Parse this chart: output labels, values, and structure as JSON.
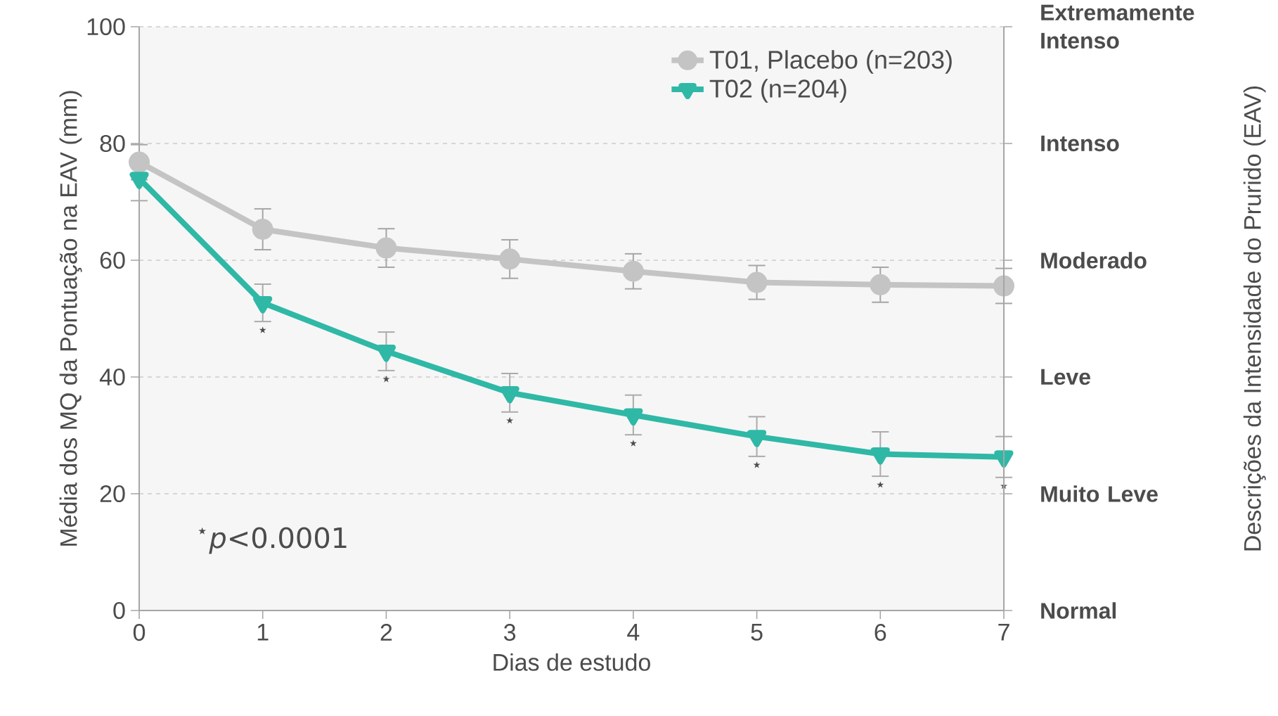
{
  "chart_data": {
    "type": "line",
    "xlabel": "Dias de estudo",
    "ylabel": "Média dos MQ da Pontuação na EAV (mm)",
    "x": [
      0,
      1,
      2,
      3,
      4,
      5,
      6,
      7
    ],
    "xlim": [
      0,
      7
    ],
    "xticks": [
      0,
      1,
      2,
      3,
      4,
      5,
      6,
      7
    ],
    "ylim": [
      0,
      100
    ],
    "yticks": [
      0,
      20,
      40,
      60,
      80,
      100
    ],
    "grid": "y",
    "legend": "top right",
    "series": [
      {
        "name": "T01, Placebo (n=203)",
        "color": "#c4c4c4",
        "marker": "circle",
        "values": [
          76.8,
          65.3,
          62.1,
          60.2,
          58.1,
          56.2,
          55.8,
          55.6
        ],
        "errors": [
          3,
          3.5,
          3.3,
          3.3,
          3,
          2.9,
          3,
          3
        ]
      },
      {
        "name": "T02 (n=204)",
        "color": "#2fb8a6",
        "marker": "triangle",
        "values": [
          74,
          52.7,
          44.4,
          37.3,
          33.5,
          29.8,
          26.8,
          26.3
        ],
        "errors": [
          3.8,
          3.2,
          3.3,
          3.3,
          3.4,
          3.4,
          3.8,
          3.5
        ]
      }
    ],
    "annotations": [
      "⋆",
      "⋆",
      "⋆",
      "⋆",
      "⋆",
      "⋆",
      "⋆",
      "$^{⋆}$*p*<0.0001",
      "Extremamente Intenso",
      "Intenso",
      "Moderado",
      "Leve",
      "Muito Leve",
      "Normal",
      "Descrições da Intensidade do Prurido (EAV)"
    ]
  }
}
